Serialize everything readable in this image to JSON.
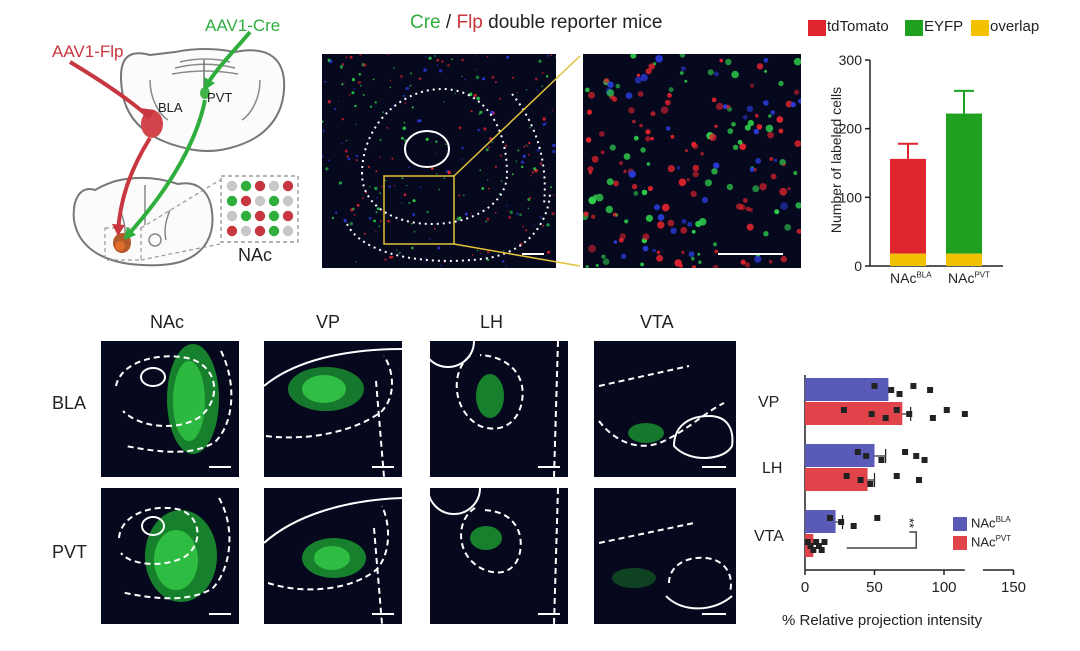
{
  "schematic": {
    "virus_flp": "AAV1-Flp",
    "virus_cre": "AAV1-Cre",
    "region_bla": "BLA",
    "region_pvt": "PVT",
    "region_nac": "NAc",
    "colors": {
      "flp": "#c8373f",
      "cre": "#2fae3e"
    }
  },
  "reporter_title": {
    "cre": "Cre",
    "slash": " / ",
    "flp": "Flp",
    "rest": " double reporter mice"
  },
  "chart_top": {
    "legend": [
      {
        "label": "tdTomato",
        "color": "#e0242e"
      },
      {
        "label": "EYFP",
        "color": "#1fa11f"
      },
      {
        "label": "overlap",
        "color": "#f2c200"
      }
    ],
    "ylabel": "Number of labeled cells",
    "yticks": [
      "0",
      "100",
      "200",
      "300"
    ],
    "cat1": {
      "main": "NAc",
      "sup": "BLA"
    },
    "cat2": {
      "main": "NAc",
      "sup": "PVT"
    }
  },
  "chart_data": [
    {
      "type": "bar",
      "stacked": true,
      "categories": [
        "NAc BLA",
        "NAc PVT"
      ],
      "ylabel": "Number of labeled cells",
      "ylim": [
        0,
        300
      ],
      "series": [
        {
          "name": "tdTomato",
          "values": [
            156,
            0
          ],
          "error": [
            22,
            0
          ]
        },
        {
          "name": "EYFP",
          "values": [
            0,
            222
          ],
          "error": [
            0,
            33
          ]
        },
        {
          "name": "overlap",
          "values": [
            18,
            18
          ]
        }
      ]
    },
    {
      "type": "bar",
      "orientation": "horizontal",
      "categories": [
        "VP",
        "LH",
        "VTA"
      ],
      "xlabel": "% Relative projection intensity",
      "xlim": [
        0,
        150
      ],
      "series": [
        {
          "name": "NAc BLA",
          "color": "#5a5bb8",
          "values": [
            60,
            50,
            22
          ],
          "error": [
            0,
            8,
            5
          ],
          "points": [
            [
              50,
              62,
              68,
              78,
              90
            ],
            [
              38,
              44,
              55,
              72,
              80,
              86
            ],
            [
              18,
              26,
              35,
              52
            ]
          ]
        },
        {
          "name": "NAc PVT",
          "color": "#e0434a",
          "values": [
            70,
            45,
            6
          ],
          "error": [
            6,
            5,
            0
          ],
          "points": [
            [
              28,
              48,
              58,
              66,
              75,
              92,
              102,
              115
            ],
            [
              30,
              40,
              47,
              66,
              82
            ],
            [
              2,
              4,
              6,
              8,
              10,
              12,
              14
            ]
          ]
        }
      ]
    }
  ],
  "chart_bottom": {
    "categories": [
      "VP",
      "LH",
      "VTA"
    ],
    "xticks": [
      "0",
      "50",
      "100",
      "150"
    ],
    "xlabel": "% Relative projection intensity",
    "legend1": {
      "main": "NAc",
      "sup": "BLA"
    },
    "legend2": {
      "main": "NAc",
      "sup": "PVT"
    },
    "significance": "**"
  },
  "grid": {
    "columns": [
      "NAc",
      "VP",
      "LH",
      "VTA"
    ],
    "rows": [
      "BLA",
      "PVT"
    ]
  }
}
